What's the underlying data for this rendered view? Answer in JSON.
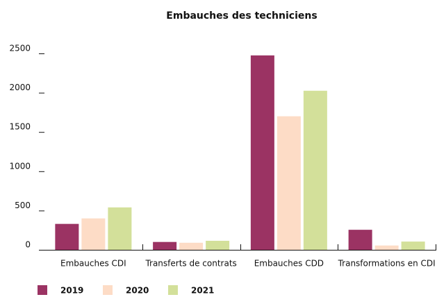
{
  "chart_data": {
    "type": "bar",
    "title": "Embauches des techniciens",
    "categories": [
      "Embauches CDI",
      "Transferts de contrats",
      "Embauches CDD",
      "Transformations en CDI"
    ],
    "series": [
      {
        "name": "2019",
        "color": "#9b3363",
        "values": [
          330,
          100,
          2475,
          255
        ]
      },
      {
        "name": "2020",
        "color": "#fddcc6",
        "values": [
          400,
          90,
          1700,
          55
        ]
      },
      {
        "name": "2021",
        "color": "#d3e09a",
        "values": [
          540,
          115,
          2025,
          105
        ]
      }
    ],
    "ylim": [
      0,
      2500
    ],
    "yticks": [
      0,
      500,
      1000,
      1500,
      2000,
      2500
    ],
    "grid": false,
    "legend": "bottom"
  }
}
